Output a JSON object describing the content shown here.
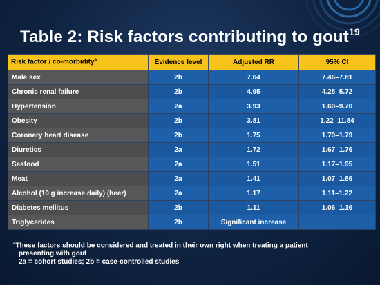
{
  "slide": {
    "title": "Table 2: Risk factors contributing to gout",
    "title_ref": "19"
  },
  "table": {
    "headers": {
      "factor": "Risk factor / co-morbidity",
      "factor_note": "a",
      "evidence": "Evidence level",
      "rr": "Adjusted RR",
      "ci": "95% CI"
    },
    "rows": [
      {
        "factor": "Male sex",
        "evidence": "2b",
        "rr": "7.64",
        "ci": "7.46–7.81"
      },
      {
        "factor": "Chronic renal failure",
        "evidence": "2b",
        "rr": "4.95",
        "ci": "4.28–5.72"
      },
      {
        "factor": "Hypertension",
        "evidence": "2a",
        "rr": "3.93",
        "ci": "1.60–9.70"
      },
      {
        "factor": "Obesity",
        "evidence": "2b",
        "rr": "3.81",
        "ci": "1.22–11.84"
      },
      {
        "factor": "Coronary heart disease",
        "evidence": "2b",
        "rr": "1.75",
        "ci": "1.70–1.79"
      },
      {
        "factor": "Diuretics",
        "evidence": "2a",
        "rr": "1.72",
        "ci": "1.67–1.76"
      },
      {
        "factor": "Seafood",
        "evidence": "2a",
        "rr": "1.51",
        "ci": "1.17–1.95"
      },
      {
        "factor": "Meat",
        "evidence": "2a",
        "rr": "1.41",
        "ci": "1.07–1.86"
      },
      {
        "factor": "Alcohol (10 g increase daily) (beer)",
        "evidence": "2a",
        "rr": "1.17",
        "ci": "1.11–1.22"
      },
      {
        "factor": "Diabetes mellitus",
        "evidence": "2b",
        "rr": "1.11",
        "ci": "1.06–1.16"
      },
      {
        "factor": "Triglycerides",
        "evidence": "2b",
        "rr": "Significant increase",
        "ci": ""
      }
    ]
  },
  "footnote": {
    "marker": "a",
    "line1": "These factors should be considered and treated in their own right when treating a patient",
    "line2": "presenting with gout",
    "line3": "2a = cohort studies; 2b = case-controlled studies"
  },
  "colors": {
    "header_bg": "#f7c21a",
    "name_cell_bg": "#575759",
    "value_cell_bg": "#1d5fa8",
    "slide_bg": "#0f2442"
  }
}
